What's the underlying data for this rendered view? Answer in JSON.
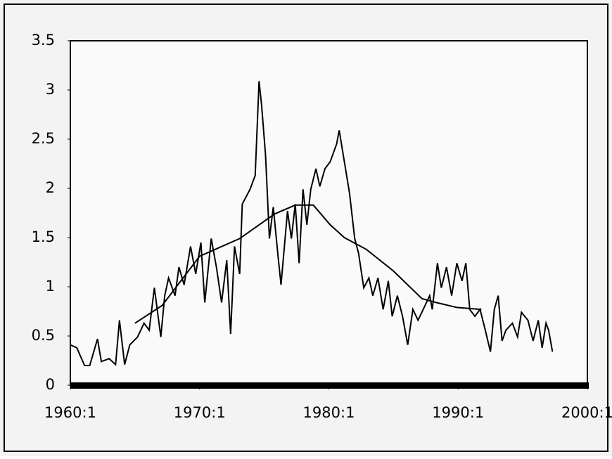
{
  "chart_data": {
    "type": "line",
    "xlim": [
      1960,
      2000
    ],
    "xticks": [
      {
        "value": 1960,
        "label": "1960:1"
      },
      {
        "value": 1970,
        "label": "1970:1"
      },
      {
        "value": 1980,
        "label": "1980:1"
      },
      {
        "value": 1990,
        "label": "1990:1"
      },
      {
        "value": 2000,
        "label": "2000:1"
      }
    ],
    "ylim": [
      0,
      3.5
    ],
    "yticks": [
      0,
      0.5,
      1,
      1.5,
      2,
      2.5,
      3,
      3.5
    ],
    "series": [
      {
        "color": "#000000",
        "x": [
          1960.0,
          1960.5,
          1961.1,
          1961.5,
          1962.1,
          1962.4,
          1963.0,
          1963.5,
          1963.8,
          1964.2,
          1964.6,
          1965.2,
          1965.7,
          1966.1,
          1966.5,
          1967.0,
          1967.3,
          1967.6,
          1968.1,
          1968.4,
          1968.8,
          1969.3,
          1969.7,
          1970.1,
          1970.4,
          1970.9,
          1971.3,
          1971.7,
          1972.1,
          1972.4,
          1972.7,
          1973.1,
          1973.3,
          1973.9,
          1974.3,
          1974.6,
          1974.8,
          1975.1,
          1975.4,
          1975.7,
          1976.1,
          1976.3,
          1976.8,
          1977.1,
          1977.4,
          1977.7,
          1978.0,
          1978.3,
          1978.6,
          1979.0,
          1979.3,
          1979.7,
          1980.1,
          1980.6,
          1980.8,
          1981.2,
          1981.6,
          1982.0,
          1982.3,
          1982.7,
          1983.1,
          1983.4,
          1983.8,
          1984.2,
          1984.6,
          1984.9,
          1985.3,
          1985.7,
          1986.1,
          1986.5,
          1986.9,
          1987.3,
          1987.8,
          1988.0,
          1988.4,
          1988.7,
          1989.1,
          1989.5,
          1989.9,
          1990.3,
          1990.6,
          1990.9,
          1991.3,
          1991.7,
          1992.1,
          1992.5,
          1992.8,
          1993.1,
          1993.4,
          1993.7,
          1994.2,
          1994.6,
          1994.9,
          1995.4,
          1995.8,
          1996.2,
          1996.5,
          1996.8,
          1997.0,
          1997.3
        ],
        "values": [
          0.41,
          0.38,
          0.2,
          0.2,
          0.47,
          0.24,
          0.27,
          0.21,
          0.66,
          0.21,
          0.41,
          0.49,
          0.63,
          0.56,
          0.99,
          0.49,
          0.91,
          1.09,
          0.91,
          1.2,
          1.02,
          1.41,
          1.13,
          1.45,
          0.84,
          1.49,
          1.2,
          0.84,
          1.27,
          0.52,
          1.41,
          1.13,
          1.84,
          1.99,
          2.13,
          3.09,
          2.84,
          2.34,
          1.49,
          1.81,
          1.27,
          1.02,
          1.77,
          1.49,
          1.84,
          1.24,
          1.99,
          1.63,
          1.99,
          2.2,
          2.02,
          2.2,
          2.27,
          2.45,
          2.59,
          2.27,
          1.95,
          1.49,
          1.34,
          0.99,
          1.09,
          0.91,
          1.09,
          0.77,
          1.06,
          0.7,
          0.91,
          0.7,
          0.41,
          0.77,
          0.66,
          0.77,
          0.91,
          0.77,
          1.24,
          0.99,
          1.2,
          0.91,
          1.24,
          1.06,
          1.24,
          0.77,
          0.7,
          0.77,
          0.56,
          0.34,
          0.77,
          0.91,
          0.45,
          0.56,
          0.63,
          0.49,
          0.74,
          0.66,
          0.45,
          0.66,
          0.38,
          0.63,
          0.56,
          0.34
        ]
      },
      {
        "color": "#000000",
        "x": [
          1965.0,
          1967.1,
          1970.0,
          1973.1,
          1975.8,
          1977.4,
          1978.8,
          1980.1,
          1981.2,
          1982.9,
          1985.0,
          1987.2,
          1988.3,
          1989.9,
          1991.8
        ],
        "values": [
          0.63,
          0.81,
          1.31,
          1.49,
          1.74,
          1.83,
          1.83,
          1.63,
          1.5,
          1.38,
          1.16,
          0.88,
          0.84,
          0.79,
          0.77
        ]
      }
    ]
  }
}
